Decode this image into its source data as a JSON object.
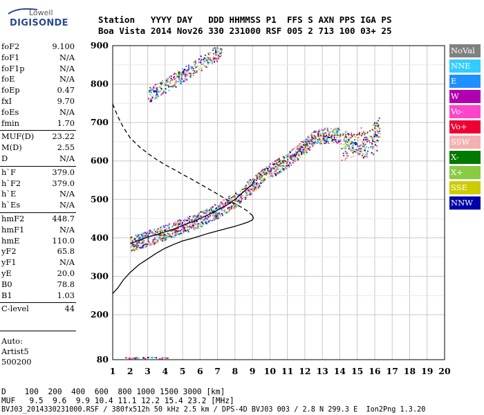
{
  "logo": {
    "line1": "Lowell",
    "line2": "DIGISONDE"
  },
  "header": {
    "line1": "Station   YYYY DAY   DDD HHMMSS P1  FFS S AXN PPS IGA PS",
    "line2": "Boa Vista 2014 Nov26 330 231000 RSF 005 2 713 100 03+ 25"
  },
  "params": [
    {
      "name": "foF2",
      "value": "9.100"
    },
    {
      "name": "foF1",
      "value": "N/A"
    },
    {
      "name": "foF1p",
      "value": "N/A"
    },
    {
      "name": "foE",
      "value": "N/A"
    },
    {
      "name": "foEp",
      "value": "0.47"
    },
    {
      "name": "fxI",
      "value": "9.70"
    },
    {
      "name": "foEs",
      "value": "N/A"
    },
    {
      "name": "fmin",
      "value": "1.70"
    },
    {
      "name": "MUF(D)",
      "value": "23.22"
    },
    {
      "name": "M(D)",
      "value": "2.55"
    },
    {
      "name": "D",
      "value": "N/A"
    },
    {
      "name": "h`F",
      "value": "379.0"
    },
    {
      "name": "h`F2",
      "value": "379.0"
    },
    {
      "name": "h`E",
      "value": "N/A"
    },
    {
      "name": "h`Es",
      "value": "N/A"
    },
    {
      "name": "hmF2",
      "value": "448.7"
    },
    {
      "name": "hmF1",
      "value": "N/A"
    },
    {
      "name": "hmE",
      "value": "110.0"
    },
    {
      "name": "yF2",
      "value": "65.8"
    },
    {
      "name": "yF1",
      "value": "N/A"
    },
    {
      "name": "yE",
      "value": "20.0"
    },
    {
      "name": "B0",
      "value": "78.8"
    },
    {
      "name": "B1",
      "value": "1.03"
    },
    {
      "name": "C-level",
      "value": "44"
    }
  ],
  "auto": {
    "line1": "Auto:",
    "line2": "Artist5",
    "line3": "500200"
  },
  "footer": {
    "line1": "D    100  200  400  600  800 1000 1500 3000 [km]",
    "line2": "MUF   9.5  9.6  9.9 10.4 11.1 12.2 15.4 23.2 [MHz]",
    "line3": "BVJ03_2014330231000.RSF / 380fx512h 50 kHz 2.5 km / DPS-4D BVJ03 003 / 2.8 N 299.3 E  Ion2Png 1.3.20"
  },
  "legend": [
    {
      "label": "NoVal",
      "bg": "#808080",
      "fg": "#ffffff"
    },
    {
      "label": "NNE",
      "bg": "#33ccff",
      "fg": "#ffffff"
    },
    {
      "label": "E",
      "bg": "#1e90ff",
      "fg": "#ffffff"
    },
    {
      "label": "W",
      "bg": "#b000b0",
      "fg": "#ffffff"
    },
    {
      "label": "Vo-",
      "bg": "#ff44cc",
      "fg": "#ffffff"
    },
    {
      "label": "Vo+",
      "bg": "#ee0033",
      "fg": "#ffffff"
    },
    {
      "label": "SSW",
      "bg": "#f4b0b0",
      "fg": "#ffffff"
    },
    {
      "label": "X-",
      "bg": "#007a00",
      "fg": "#ffffff"
    },
    {
      "label": "X+",
      "bg": "#88cc44",
      "fg": "#ffffff"
    },
    {
      "label": "SSE",
      "bg": "#cccc00",
      "fg": "#ffffff"
    },
    {
      "label": "NNW",
      "bg": "#0000aa",
      "fg": "#ffffff"
    }
  ],
  "chart_data": {
    "type": "scatter",
    "title": "",
    "xlabel": "",
    "ylabel": "",
    "xlim": [
      1,
      20
    ],
    "ylim": [
      80,
      900
    ],
    "xticks": [
      1,
      2,
      3,
      4,
      5,
      6,
      7,
      8,
      9,
      10,
      11,
      12,
      13,
      14,
      15,
      16,
      17,
      18,
      19,
      20
    ],
    "yticks": [
      80,
      200,
      300,
      400,
      500,
      600,
      700,
      800,
      900
    ],
    "grid": true,
    "series": [
      {
        "name": "",
        "style": "solid",
        "color": "#000000",
        "x": [
          1.0,
          1.3,
          1.6,
          2.0,
          2.5,
          3.0,
          3.5,
          4.0,
          4.5,
          5.0,
          5.5,
          6.0,
          6.5,
          7.0,
          7.5,
          8.0,
          8.5,
          8.8,
          9.0,
          9.05,
          9.0
        ],
        "y": [
          255,
          270,
          290,
          310,
          330,
          345,
          360,
          373,
          383,
          392,
          398,
          405,
          412,
          418,
          424,
          430,
          437,
          442,
          447,
          452,
          458
        ]
      },
      {
        "name": "",
        "style": "dashed",
        "color": "#000000",
        "x": [
          1.0,
          1.3,
          1.6,
          2.0,
          2.5,
          3.0,
          3.5,
          4.0,
          4.5,
          5.0,
          5.5,
          6.0,
          6.5,
          7.0,
          7.5,
          8.0,
          8.4,
          8.7,
          9.0
        ],
        "y": [
          748,
          715,
          688,
          660,
          638,
          620,
          604,
          590,
          578,
          565,
          553,
          540,
          527,
          514,
          500,
          488,
          479,
          470,
          458
        ]
      },
      {
        "name": "",
        "style": "solid",
        "color": "#000000",
        "x": [
          2.0,
          2.5,
          3.0,
          3.5,
          4.0,
          4.5,
          5.0,
          5.5,
          6.0,
          6.5,
          7.0,
          7.5,
          8.0,
          8.5,
          9.0,
          9.1
        ],
        "y": [
          385,
          393,
          402,
          408,
          416,
          423,
          432,
          441,
          450,
          461,
          472,
          484,
          500,
          520,
          540,
          550
        ]
      },
      {
        "name": "",
        "style": "dots",
        "color": "#7a3d00",
        "x": [
          9.1,
          9.5,
          10.0,
          10.5,
          11.0,
          11.5,
          12.0,
          12.5,
          13.0,
          13.5,
          14.0,
          14.5,
          15.0,
          15.5,
          16.0,
          16.3
        ],
        "y": [
          550,
          560,
          575,
          590,
          603,
          620,
          640,
          660,
          667,
          667,
          667,
          668,
          668,
          672,
          685,
          715
        ]
      }
    ]
  }
}
